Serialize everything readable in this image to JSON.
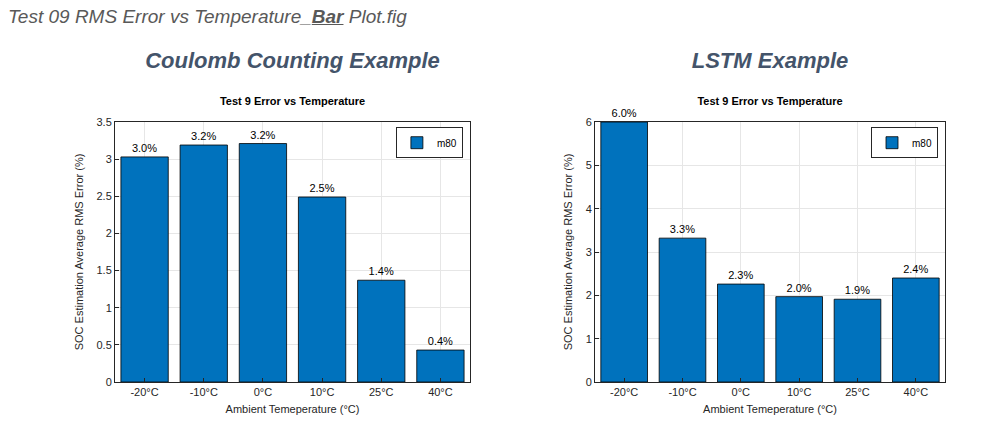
{
  "file_title": {
    "before": "Test 09 RMS Error vs Temperature_",
    "emphasis": "Bar",
    "after": " Plot.fig"
  },
  "headings": [
    "Coulomb Counting Example",
    "LSTM Example"
  ],
  "chart_data": [
    {
      "type": "bar",
      "title": "Test 9 Error vs Temperature",
      "x_label": "Ambient Temeperature (°C)",
      "y_label": "SOC Estimation Average RMS Error (%)",
      "categories": [
        "-20°C",
        "-10°C",
        "0°C",
        "10°C",
        "25°C",
        "40°C"
      ],
      "series": [
        {
          "name": "m80",
          "color": "#0072bd",
          "values": [
            3.03,
            3.19,
            3.21,
            2.49,
            1.37,
            0.43
          ],
          "value_labels": [
            "3.0%",
            "3.2%",
            "3.2%",
            "2.5%",
            "1.4%",
            "0.4%"
          ]
        }
      ],
      "ylim": [
        0,
        3.5
      ],
      "yticks": [
        0,
        0.5,
        1,
        1.5,
        2,
        2.5,
        3,
        3.5
      ],
      "grid": true,
      "legend": "top right",
      "data_labels": true
    },
    {
      "type": "bar",
      "title": "Test 9 Error vs Temperature",
      "x_label": "Ambient Temeperature (°C)",
      "y_label": "SOC Estimation Average RMS Error (%)",
      "categories": [
        "-20°C",
        "-10°C",
        "0°C",
        "10°C",
        "25°C",
        "40°C"
      ],
      "series": [
        {
          "name": "m80",
          "color": "#0072bd",
          "values": [
            6.0,
            3.32,
            2.26,
            1.97,
            1.91,
            2.4
          ],
          "value_labels": [
            "6.0%",
            "3.3%",
            "2.3%",
            "2.0%",
            "1.9%",
            "2.4%"
          ]
        }
      ],
      "ylim": [
        0,
        6
      ],
      "yticks": [
        0,
        1,
        2,
        3,
        4,
        5,
        6
      ],
      "grid": true,
      "legend": "top right",
      "data_labels": true
    }
  ]
}
